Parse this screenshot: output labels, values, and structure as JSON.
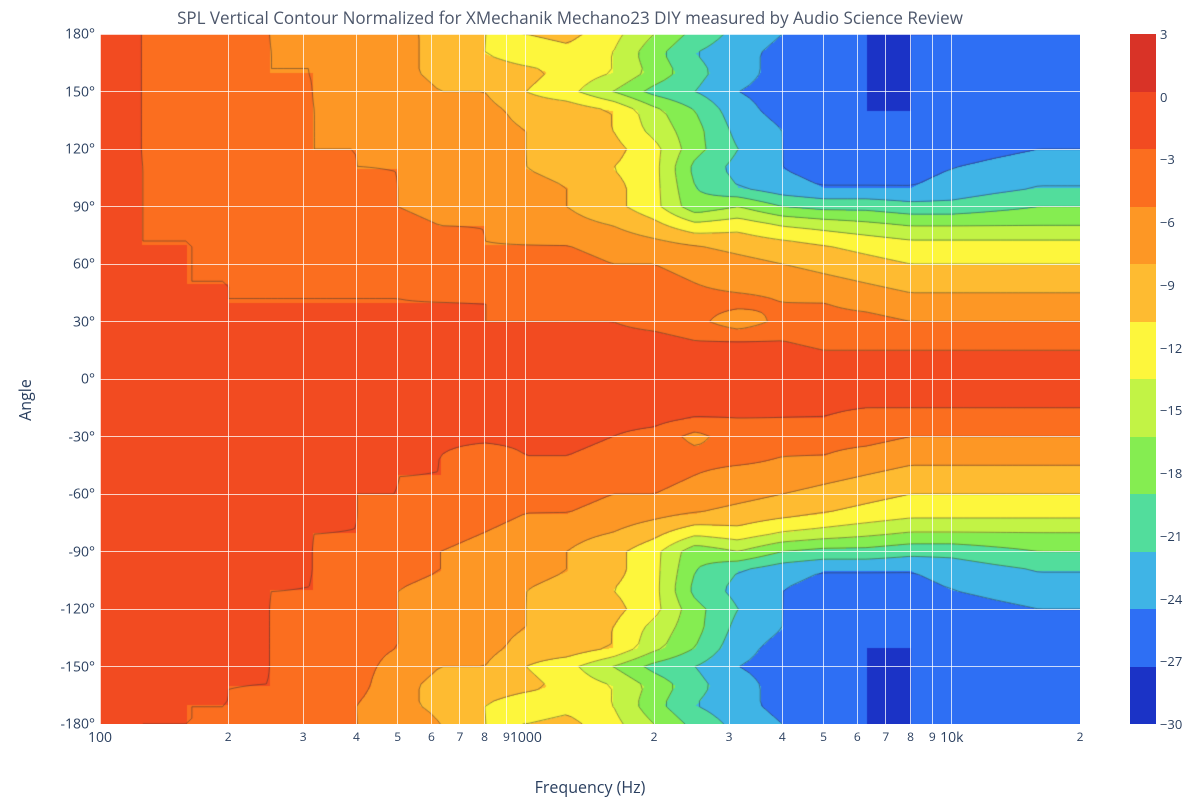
{
  "title": "SPL Vertical Contour Normalized for XMechanik Mechano23 DIY measured by Audio Science Review",
  "xlabel": "Frequency (Hz)",
  "ylabel": "Angle",
  "title_color": "#4c566a",
  "axis_text_color": "#2a3f5f",
  "background_color": "#ffffff",
  "grid_color": "#ffffff",
  "title_fontsize": 17,
  "axis_label_fontsize": 16,
  "tick_fontsize": 14,
  "plot": {
    "type": "filled-contour",
    "x_scale": "log",
    "xlim": [
      100,
      20000
    ],
    "ylim": [
      -180,
      180
    ],
    "y_ticks": [
      -180,
      -150,
      -120,
      -90,
      -60,
      -30,
      0,
      30,
      60,
      90,
      120,
      150,
      180
    ],
    "y_tick_labels": [
      "-180°",
      "-150°",
      "-120°",
      "-90°",
      "-60°",
      "-30°",
      "0°",
      "30°",
      "60°",
      "90°",
      "120°",
      "150°",
      "180°"
    ],
    "x_major_ticks": [
      100,
      1000,
      10000
    ],
    "x_major_labels": [
      "100",
      "1000",
      "10k"
    ],
    "x_minor_ticks": [
      200,
      300,
      400,
      500,
      600,
      700,
      800,
      900,
      2000,
      3000,
      4000,
      5000,
      6000,
      7000,
      8000,
      9000,
      20000
    ],
    "x_minor_labels": [
      "2",
      "3",
      "4",
      "5",
      "6",
      "7",
      "8",
      "9",
      "2",
      "3",
      "4",
      "5",
      "6",
      "7",
      "8",
      "9",
      "2"
    ]
  },
  "colorbar": {
    "min": -30,
    "max": 3,
    "step": 3,
    "ticks": [
      3,
      0,
      -3,
      -6,
      -9,
      -12,
      -15,
      -18,
      -21,
      -24,
      -27,
      -30
    ],
    "tick_labels": [
      "3",
      "0",
      "−3",
      "−6",
      "−9",
      "−12",
      "−15",
      "−18",
      "−21",
      "−24",
      "−27",
      "−30"
    ],
    "colors": [
      "#d93327",
      "#f24b21",
      "#fb6e1f",
      "#fd9725",
      "#febb31",
      "#fdf63c",
      "#c2f345",
      "#85ed51",
      "#52dd9c",
      "#3fb4e6",
      "#2e6ff4",
      "#1b33c6"
    ],
    "contour_line_color": "#333333",
    "contour_line_width": 0.5
  },
  "field": {
    "freqs": [
      100,
      125,
      160,
      200,
      250,
      315,
      400,
      500,
      630,
      800,
      1000,
      1250,
      1600,
      2000,
      2500,
      3150,
      4000,
      5000,
      6300,
      8000,
      10000,
      12500,
      16000,
      20000
    ],
    "angles": [
      -180,
      -170,
      -160,
      -150,
      -140,
      -130,
      -120,
      -110,
      -100,
      -90,
      -80,
      -70,
      -60,
      -50,
      -40,
      -30,
      -20,
      -10,
      0,
      10,
      20,
      30,
      40,
      50,
      60,
      70,
      80,
      90,
      100,
      110,
      120,
      130,
      140,
      150,
      160,
      170,
      180
    ],
    "values": [
      [
        -2,
        -3,
        -3,
        -3,
        -4,
        -4,
        -6,
        -6,
        -9,
        -12,
        -12,
        -11,
        -14,
        -18,
        -22,
        -25,
        -27,
        -29,
        -30,
        -30,
        -30,
        -29,
        -28,
        -27
      ],
      [
        -1,
        -2,
        -3,
        -3,
        -4,
        -4,
        -6,
        -8,
        -10,
        -12,
        -14,
        -13,
        -15,
        -20,
        -24,
        -26,
        -28,
        -29,
        -30,
        -30,
        -29,
        -28,
        -27,
        -27
      ],
      [
        0,
        -1,
        -2,
        -3,
        -3,
        -4,
        -5,
        -8,
        -10,
        -10,
        -11,
        -13,
        -15,
        -19,
        -23,
        -26,
        -28,
        -29,
        -30,
        -30,
        -29,
        -28,
        -27,
        -27
      ],
      [
        0,
        -1,
        -2,
        -2,
        -3,
        -4,
        -5,
        -7,
        -9,
        -9,
        -12,
        -14,
        -18,
        -22,
        -24,
        -27,
        -28,
        -29,
        -30,
        -30,
        -29,
        -28,
        -27,
        -27
      ],
      [
        0,
        -1,
        -2,
        -2,
        -3,
        -4,
        -5,
        -6,
        -7,
        -8,
        -10,
        -10,
        -12,
        -17,
        -21,
        -26,
        -28,
        -29,
        -30,
        -30,
        -29,
        -28,
        -27,
        -27
      ],
      [
        0,
        -1,
        -1,
        -2,
        -3,
        -4,
        -5,
        -6,
        -7,
        -8,
        -9,
        -10,
        -12,
        -16,
        -20,
        -25,
        -27,
        -29,
        -29,
        -30,
        -29,
        -28,
        -27,
        -27
      ],
      [
        0,
        0,
        -1,
        -2,
        -3,
        -4,
        -5,
        -6,
        -7,
        -7,
        -9,
        -11,
        -11,
        -14,
        -20,
        -24,
        -27,
        -29,
        -29,
        -29,
        -29,
        -28,
        -27,
        -27
      ],
      [
        0,
        0,
        -1,
        -2,
        -3,
        -3,
        -5,
        -6,
        -7,
        -7,
        -9,
        -10,
        -12,
        -14,
        -22,
        -25,
        -27,
        -28,
        -28,
        -28,
        -27,
        -26,
        -25,
        -25
      ],
      [
        0,
        0,
        -1,
        -2,
        -2,
        -3,
        -4,
        -5,
        -6,
        -7,
        -8,
        -9,
        -11,
        -14,
        -21,
        -24,
        -26,
        -27,
        -27,
        -27,
        -26,
        -25,
        -24,
        -24
      ],
      [
        0,
        0,
        -1,
        -1,
        -2,
        -3,
        -4,
        -5,
        -6,
        -7,
        -8,
        -9,
        -11,
        -14,
        -20,
        -18,
        -21,
        -22,
        -22,
        -23,
        -23,
        -22,
        -21,
        -21
      ],
      [
        0,
        0,
        -1,
        -1,
        -2,
        -3,
        -3,
        -4,
        -5,
        -6,
        -7,
        -8,
        -9,
        -11,
        -14,
        -13,
        -15,
        -16,
        -17,
        -18,
        -18,
        -18,
        -18,
        -18
      ],
      [
        0,
        0,
        -1,
        -1,
        -2,
        -2,
        -3,
        -3,
        -4,
        -5,
        -6,
        -6,
        -7,
        -8,
        -9,
        -10,
        -11,
        -12,
        -13,
        -14,
        -14,
        -14,
        -14,
        -14
      ],
      [
        0,
        0,
        -1,
        -1,
        -2,
        -2,
        -3,
        -3,
        -4,
        -4,
        -5,
        -5,
        -6,
        -6,
        -7,
        -8,
        -9,
        -10,
        -11,
        -12,
        -12,
        -12,
        -12,
        -12
      ],
      [
        0,
        0,
        0,
        -1,
        -1,
        -2,
        -2,
        -3,
        -3,
        -5,
        -4,
        -4,
        -5,
        -5,
        -6,
        -7,
        -7,
        -8,
        -9,
        -10,
        -10,
        -10,
        -10,
        -10
      ],
      [
        0,
        0,
        0,
        -1,
        -1,
        -1,
        -2,
        -2,
        -3,
        -5,
        -3,
        -3,
        -4,
        -4,
        -5,
        -5,
        -6,
        -6,
        -7,
        -8,
        -8,
        -8,
        -8,
        -8
      ],
      [
        0,
        0,
        0,
        0,
        -1,
        -1,
        -1,
        -2,
        -2,
        -2,
        -2,
        -2,
        -3,
        -4,
        -7,
        -4,
        -4,
        -5,
        -5,
        -6,
        -6,
        -6,
        -6,
        -6
      ],
      [
        0,
        0,
        0,
        0,
        0,
        -1,
        -1,
        -1,
        -1,
        -1,
        -1,
        -1,
        -2,
        -2,
        -3,
        -3,
        -3,
        -3,
        -4,
        -4,
        -4,
        -4,
        -4,
        -4
      ],
      [
        0,
        0,
        0,
        0,
        0,
        0,
        0,
        0,
        0,
        -1,
        -1,
        -1,
        -1,
        -1,
        -1,
        -1,
        -2,
        -2,
        -2,
        -2,
        -2,
        -2,
        -2,
        -2
      ],
      [
        0,
        0,
        0,
        0,
        0,
        0,
        0,
        0,
        0,
        0,
        0,
        0,
        0,
        0,
        0,
        0,
        0,
        0,
        0,
        0,
        0,
        0,
        0,
        0
      ],
      [
        -1,
        -1,
        -1,
        -1,
        -1,
        -1,
        -1,
        -1,
        -1,
        -1,
        -1,
        -1,
        -1,
        -1,
        -1,
        -1,
        -1,
        -2,
        -2,
        -2,
        -2,
        -2,
        -2,
        -2
      ],
      [
        -1,
        -1,
        -1,
        -2,
        -2,
        -2,
        -2,
        -2,
        -2,
        -2,
        -2,
        -2,
        -2,
        -2,
        -3,
        -3,
        -3,
        -4,
        -4,
        -4,
        -4,
        -4,
        -4,
        -4
      ],
      [
        -1,
        -2,
        -2,
        -2,
        -2,
        -2,
        -2,
        -2,
        -2,
        -3,
        -3,
        -3,
        -3,
        -4,
        -5,
        -8,
        -5,
        -5,
        -5,
        -6,
        -6,
        -6,
        -6,
        -6
      ],
      [
        -2,
        -2,
        -2,
        -3,
        -3,
        -3,
        -3,
        -3,
        -3,
        -3,
        -3,
        -3,
        -4,
        -4,
        -5,
        -5,
        -6,
        -6,
        -7,
        -8,
        -8,
        -8,
        -8,
        -8
      ],
      [
        -2,
        -2,
        -3,
        -3,
        -3,
        -3,
        -3,
        -3,
        -4,
        -4,
        -4,
        -4,
        -5,
        -5,
        -6,
        -7,
        -7,
        -8,
        -9,
        -10,
        -10,
        -10,
        -10,
        -10
      ],
      [
        -2,
        -2,
        -3,
        -3,
        -3,
        -3,
        -4,
        -4,
        -4,
        -5,
        -5,
        -5,
        -6,
        -6,
        -7,
        -8,
        -9,
        -10,
        -11,
        -12,
        -12,
        -12,
        -12,
        -12
      ],
      [
        -2,
        -3,
        -3,
        -3,
        -4,
        -4,
        -4,
        -5,
        -5,
        -6,
        -6,
        -6,
        -7,
        -8,
        -9,
        -10,
        -11,
        -12,
        -13,
        -14,
        -14,
        -14,
        -14,
        -14
      ],
      [
        -2,
        -3,
        -3,
        -4,
        -4,
        -4,
        -5,
        -5,
        -6,
        -6,
        -7,
        -8,
        -9,
        -11,
        -14,
        -13,
        -15,
        -16,
        -17,
        -18,
        -18,
        -18,
        -18,
        -18
      ],
      [
        -2,
        -3,
        -3,
        -4,
        -4,
        -5,
        -5,
        -6,
        -7,
        -7,
        -8,
        -9,
        -11,
        -14,
        -20,
        -18,
        -21,
        -22,
        -22,
        -23,
        -23,
        -22,
        -21,
        -21
      ],
      [
        -2,
        -3,
        -3,
        -4,
        -4,
        -5,
        -5,
        -6,
        -7,
        -7,
        -8,
        -9,
        -11,
        -14,
        -21,
        -24,
        -26,
        -27,
        -27,
        -27,
        -26,
        -25,
        -24,
        -24
      ],
      [
        -2,
        -3,
        -3,
        -4,
        -5,
        -5,
        -6,
        -6,
        -7,
        -7,
        -9,
        -10,
        -12,
        -14,
        -22,
        -25,
        -27,
        -28,
        -28,
        -28,
        -27,
        -26,
        -25,
        -25
      ],
      [
        -2,
        -3,
        -4,
        -4,
        -5,
        -6,
        -6,
        -7,
        -7,
        -7,
        -9,
        -11,
        -11,
        -14,
        -20,
        -24,
        -27,
        -29,
        -29,
        -29,
        -29,
        -28,
        -27,
        -27
      ],
      [
        -2,
        -3,
        -4,
        -5,
        -5,
        -6,
        -6,
        -7,
        -7,
        -8,
        -9,
        -10,
        -12,
        -16,
        -20,
        -25,
        -27,
        -29,
        -29,
        -30,
        -29,
        -28,
        -27,
        -27
      ],
      [
        -2,
        -3,
        -4,
        -5,
        -5,
        -6,
        -6,
        -7,
        -7,
        -8,
        -10,
        -10,
        -12,
        -17,
        -21,
        -26,
        -28,
        -29,
        -30,
        -30,
        -29,
        -28,
        -27,
        -27
      ],
      [
        -2,
        -3,
        -4,
        -5,
        -5,
        -6,
        -7,
        -7,
        -9,
        -9,
        -12,
        -14,
        -18,
        -22,
        -24,
        -27,
        -28,
        -29,
        -30,
        -30,
        -29,
        -28,
        -27,
        -27
      ],
      [
        -2,
        -3,
        -4,
        -5,
        -6,
        -6,
        -7,
        -8,
        -10,
        -10,
        -11,
        -13,
        -15,
        -19,
        -23,
        -26,
        -28,
        -29,
        -30,
        -30,
        -29,
        -28,
        -27,
        -27
      ],
      [
        -2,
        -3,
        -4,
        -5,
        -6,
        -6,
        -7,
        -8,
        -10,
        -12,
        -14,
        -13,
        -15,
        -20,
        -24,
        -26,
        -28,
        -29,
        -30,
        -30,
        -29,
        -28,
        -27,
        -27
      ],
      [
        -2,
        -3,
        -4,
        -5,
        -6,
        -7,
        -8,
        -9,
        -9,
        -12,
        -12,
        -11,
        -14,
        -18,
        -22,
        -25,
        -27,
        -29,
        -30,
        -30,
        -30,
        -29,
        -28,
        -27
      ]
    ]
  }
}
